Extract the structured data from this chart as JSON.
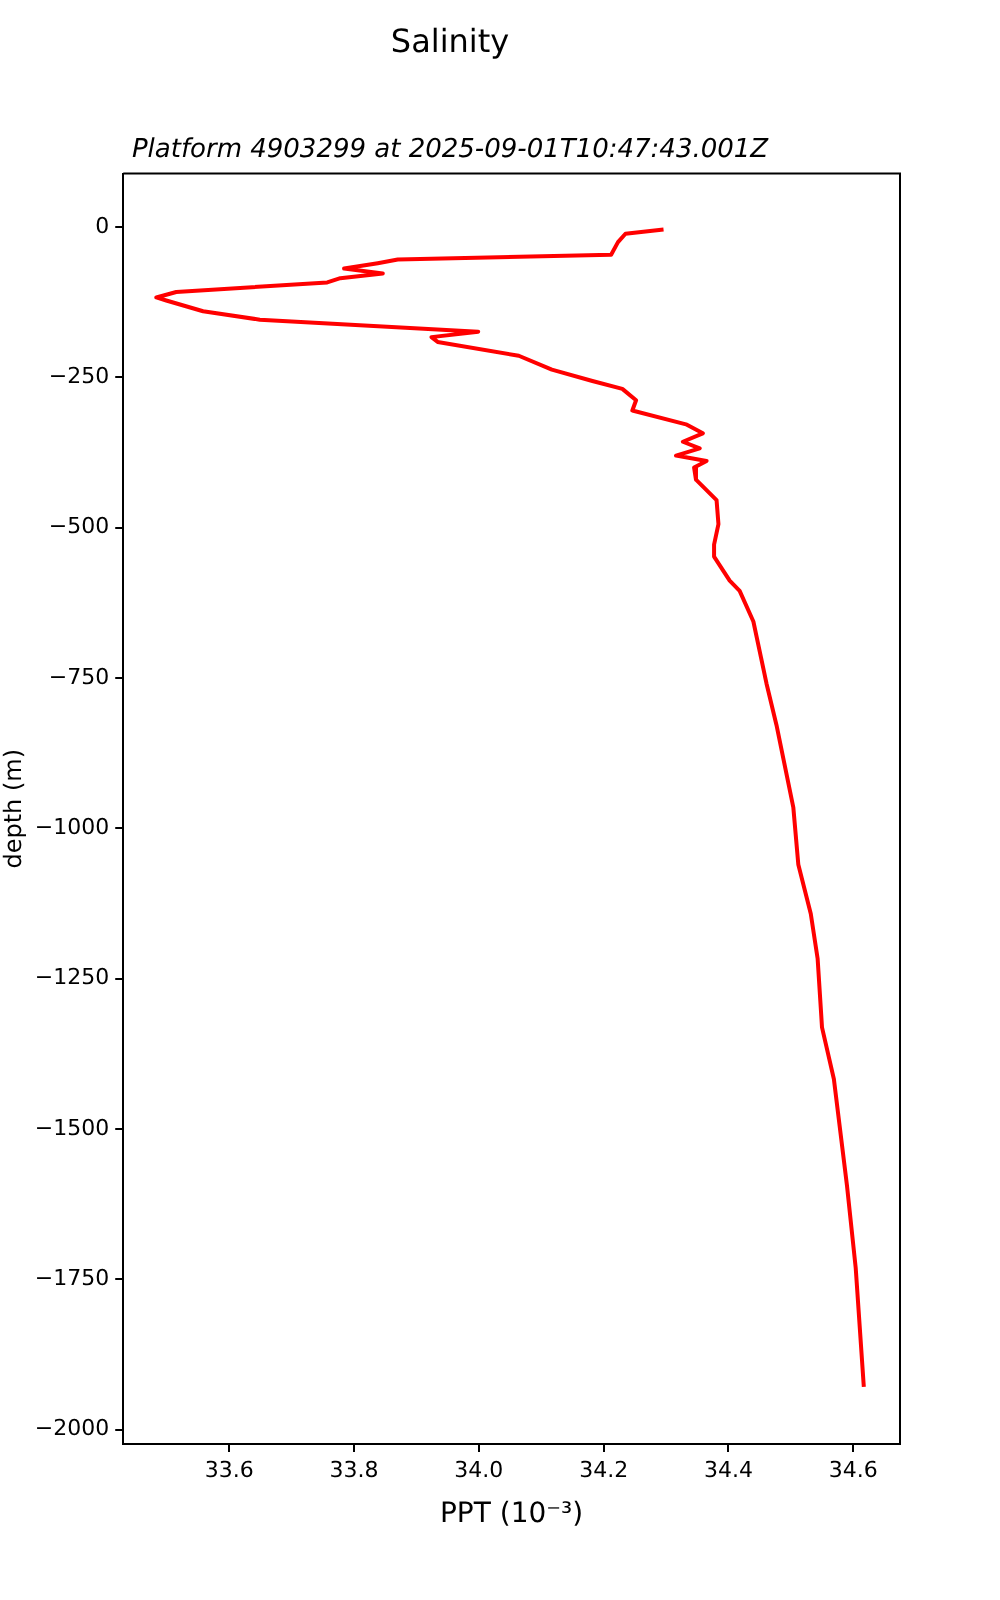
{
  "chart_data": {
    "type": "line",
    "title": "Salinity",
    "subtitle": "Platform 4903299 at 2025-09-01T10:47:43.001Z",
    "xlabel": "PPT (10⁻³)",
    "ylabel": "depth (m)",
    "xlim": [
      33.43,
      34.675
    ],
    "ylim": [
      -2024,
      89
    ],
    "xticks": [
      33.6,
      33.8,
      {
        "value": 34.0,
        "label": "34.0"
      },
      34.2,
      34.4,
      34.6
    ],
    "yticks": [
      0,
      -250,
      -500,
      -750,
      -1000,
      -1250,
      -1500,
      -1750,
      -2000
    ],
    "grid": false,
    "legend": false,
    "marker": "none",
    "line_style": "solid",
    "series": [
      {
        "color": "#ff0000",
        "x": [
          34.296,
          34.235,
          34.223,
          34.212,
          33.87,
          33.838,
          33.784,
          33.846,
          33.778,
          33.757,
          33.515,
          33.483,
          33.499,
          33.558,
          33.649,
          33.999,
          33.924,
          33.934,
          34.064,
          34.117,
          34.182,
          34.23,
          34.252,
          34.246,
          34.332,
          34.359,
          34.327,
          34.354,
          34.316,
          34.365,
          34.345,
          34.348,
          34.381,
          34.384,
          34.377,
          34.377,
          34.402,
          34.418,
          34.44,
          34.461,
          34.477,
          34.504,
          34.512,
          34.532,
          34.543,
          34.55,
          34.569,
          34.59,
          34.604,
          34.617
        ],
        "values": [
          -4,
          -11,
          -25,
          -46,
          -54,
          -60,
          -69,
          -77,
          -85,
          -92,
          -108,
          -117,
          -122,
          -140,
          -154,
          -174,
          -183,
          -191,
          -214,
          -237,
          -256,
          -269,
          -288,
          -305,
          -328,
          -343,
          -357,
          -368,
          -380,
          -389,
          -400,
          -420,
          -454,
          -494,
          -528,
          -548,
          -588,
          -605,
          -656,
          -759,
          -828,
          -965,
          -1060,
          -1142,
          -1217,
          -1331,
          -1417,
          -1594,
          -1731,
          -1929
        ]
      }
    ]
  }
}
